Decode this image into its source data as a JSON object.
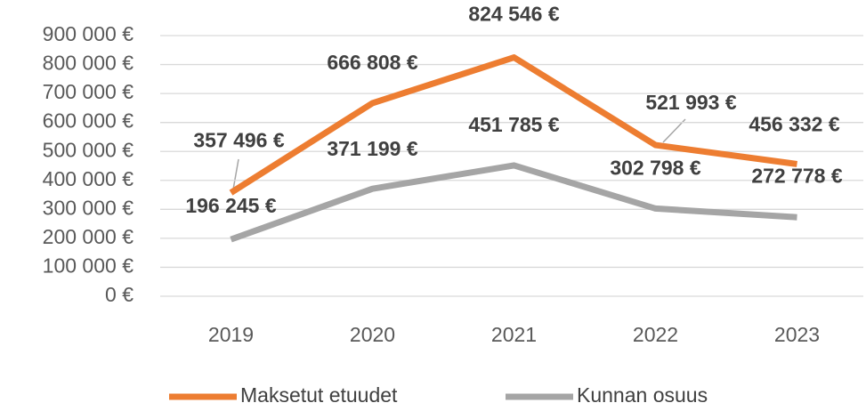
{
  "chart_data": {
    "type": "line",
    "categories": [
      "2019",
      "2020",
      "2021",
      "2022",
      "2023"
    ],
    "series": [
      {
        "name": "Maksetut etuudet",
        "color": "#ed7d31",
        "values": [
          357496,
          666808,
          824546,
          521993,
          456332
        ],
        "value_labels": [
          "357 496 €",
          "666 808 €",
          "824 546 €",
          "521 993 €",
          "456 332 €"
        ]
      },
      {
        "name": "Kunnan osuus",
        "color": "#a5a5a5",
        "values": [
          196245,
          371199,
          451785,
          302798,
          272778
        ],
        "value_labels": [
          "196 245 €",
          "371 199 €",
          "451 785 €",
          "302 798 €",
          "272 778 €"
        ]
      }
    ],
    "ylim": [
      0,
      900000
    ],
    "yticks": [
      {
        "value": 0,
        "label": "0 €"
      },
      {
        "value": 100000,
        "label": "100 000 €"
      },
      {
        "value": 200000,
        "label": "200 000 €"
      },
      {
        "value": 300000,
        "label": "300 000 €"
      },
      {
        "value": 400000,
        "label": "400 000 €"
      },
      {
        "value": 500000,
        "label": "500 000 €"
      },
      {
        "value": 600000,
        "label": "600 000 €"
      },
      {
        "value": 700000,
        "label": "700 000 €"
      },
      {
        "value": 800000,
        "label": "800 000 €"
      },
      {
        "value": 900000,
        "label": "900 000 €"
      }
    ],
    "grid": true,
    "legend": "bottom"
  }
}
